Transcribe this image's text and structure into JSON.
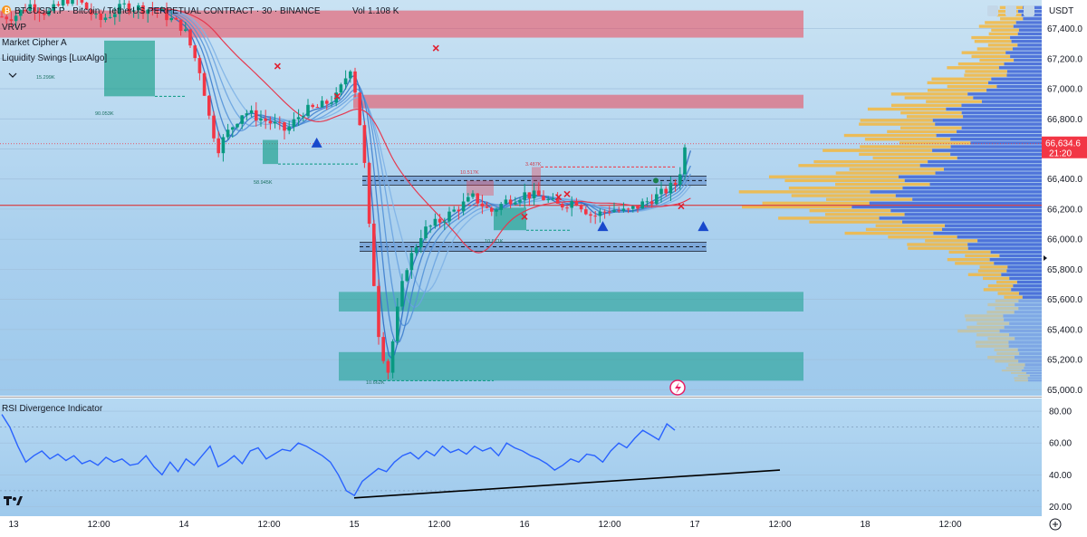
{
  "header": {
    "symbol_line": "BTCUSDT.P · Bitcoin / TetherUS PERPETUAL CONTRACT · 30 · BINANCE",
    "volume_label": "Vol",
    "volume_value": "1.108 K",
    "currency": "USDT"
  },
  "indicators": [
    "VRVP",
    "Market Cipher A",
    "Liquidity Swings [LuxAlgo]"
  ],
  "price_axis": {
    "ticks": [
      "67,400.0",
      "67,200.0",
      "67,000.0",
      "66,800.0",
      "66,600.0",
      "66,400.0",
      "66,200.0",
      "66,000.0",
      "65,800.0",
      "65,600.0",
      "65,400.0",
      "65,200.0",
      "65,000.0"
    ],
    "tick_values": [
      67400,
      67200,
      67000,
      66800,
      66600,
      66400,
      66200,
      66000,
      65800,
      65600,
      65400,
      65200,
      65000
    ],
    "last_price": "66,634.6",
    "countdown": "21:20",
    "last_price_value": 66634.6,
    "red_line_value": 66225,
    "ylim": [
      64960,
      67590
    ]
  },
  "time_axis": {
    "labels": [
      "13",
      "12:00",
      "14",
      "12:00",
      "15",
      "12:00",
      "16",
      "12:00",
      "17",
      "12:00",
      "18",
      "12:00"
    ]
  },
  "rsi_panel": {
    "title": "RSI Divergence Indicator",
    "ticks": [
      "80.00",
      "60.00",
      "40.00",
      "20.00"
    ],
    "tick_values": [
      80,
      60,
      40,
      20
    ],
    "ylim": [
      14,
      88
    ]
  },
  "annotations": {
    "liquidity_labels": [
      "15.299K",
      "90.053K",
      "58.945K",
      "10.517K",
      "3.487K",
      "10.671K",
      "10.662K"
    ]
  },
  "colors": {
    "supply_zone": "#f23645",
    "demand_zone": "#089981",
    "up_candle": "#089981",
    "down_candle": "#f23645",
    "rsi_line": "#2962ff",
    "ema_red": "#e53950",
    "signal_triangle": "#1848cc",
    "vp_yellow": "#f5b73d",
    "vp_blue": "#3d63d6"
  },
  "chart_data": {
    "type": "candlestick",
    "title": "BTCUSDT.P · Bitcoin / TetherUS PERPETUAL CONTRACT · 30 · BINANCE",
    "timeframe": "30",
    "ylim": [
      64960,
      67590
    ],
    "supply_zones": [
      {
        "from": 67340,
        "to": 67520
      },
      {
        "from": 66870,
        "to": 66960
      }
    ],
    "demand_zones": [
      {
        "from": 65520,
        "to": 65650
      },
      {
        "from": 65060,
        "to": 65250
      }
    ],
    "range_box": {
      "high": 66390,
      "low": 65950
    },
    "last_price": 66634.6,
    "price_path": [
      [
        13.0,
        67480
      ],
      [
        13.1,
        67560
      ],
      [
        13.2,
        67500
      ],
      [
        13.35,
        67620
      ],
      [
        13.5,
        67450
      ],
      [
        13.65,
        67550
      ],
      [
        13.85,
        67520
      ],
      [
        14.0,
        67400
      ],
      [
        14.1,
        67100
      ],
      [
        14.15,
        66800
      ],
      [
        14.2,
        66600
      ],
      [
        14.25,
        66700
      ],
      [
        14.35,
        66850
      ],
      [
        14.5,
        66780
      ],
      [
        14.6,
        66720
      ],
      [
        14.7,
        66850
      ],
      [
        14.8,
        66880
      ],
      [
        14.9,
        66950
      ],
      [
        14.98,
        67150
      ],
      [
        15.02,
        66900
      ],
      [
        15.06,
        66500
      ],
      [
        15.1,
        65900
      ],
      [
        15.15,
        65300
      ],
      [
        15.2,
        65120
      ],
      [
        15.25,
        65500
      ],
      [
        15.3,
        65800
      ],
      [
        15.4,
        66050
      ],
      [
        15.5,
        66120
      ],
      [
        15.6,
        66200
      ],
      [
        15.7,
        66280
      ],
      [
        15.8,
        66180
      ],
      [
        15.9,
        66260
      ],
      [
        16.0,
        66300
      ],
      [
        16.1,
        66280
      ],
      [
        16.2,
        66220
      ],
      [
        16.3,
        66260
      ],
      [
        16.4,
        66150
      ],
      [
        16.5,
        66200
      ],
      [
        16.6,
        66180
      ],
      [
        16.7,
        66240
      ],
      [
        16.8,
        66300
      ],
      [
        16.9,
        66380
      ],
      [
        16.95,
        66650
      ]
    ],
    "signals": {
      "buy_triangles": [
        [
          14.78,
          66640
        ],
        [
          16.46,
          66085
        ],
        [
          17.05,
          66085
        ]
      ],
      "sell_crosses": [
        [
          14.55,
          67150
        ],
        [
          14.9,
          66950
        ],
        [
          15.48,
          67270
        ],
        [
          16.0,
          66150
        ],
        [
          16.2,
          66280
        ],
        [
          16.25,
          66300
        ],
        [
          16.92,
          66220
        ]
      ]
    },
    "volume_profile": {
      "price_levels": [
        67550,
        67400,
        67250,
        67100,
        66950,
        66800,
        66650,
        66500,
        66350,
        66200,
        66050,
        65900,
        65750,
        65600,
        65450,
        65300,
        65150,
        65050
      ],
      "volume_relative": [
        0.16,
        0.22,
        0.26,
        0.34,
        0.52,
        0.62,
        0.66,
        0.82,
        0.98,
        1.0,
        0.64,
        0.34,
        0.22,
        0.16,
        0.3,
        0.22,
        0.14,
        0.08
      ],
      "buy_share": [
        0.55,
        0.55,
        0.55,
        0.55,
        0.5,
        0.4,
        0.5,
        0.5,
        0.45,
        0.35,
        0.45,
        0.45,
        0.45,
        0.5,
        0.5,
        0.5,
        0.5,
        0.5
      ]
    },
    "rsi": {
      "ylim": [
        14,
        88
      ],
      "values": [
        78,
        70,
        58,
        48,
        52,
        55,
        50,
        53,
        49,
        52,
        47,
        49,
        46,
        51,
        48,
        50,
        46,
        47,
        52,
        45,
        40,
        48,
        42,
        50,
        46,
        52,
        58,
        45,
        48,
        52,
        47,
        55,
        57,
        50,
        53,
        56,
        55,
        60,
        58,
        55,
        52,
        48,
        40,
        30,
        27,
        36,
        40,
        44,
        42,
        48,
        52,
        54,
        50,
        55,
        52,
        58,
        54,
        56,
        53,
        58,
        55,
        57,
        52,
        60,
        57,
        55,
        52,
        50,
        47,
        43,
        46,
        50,
        48,
        53,
        52,
        48,
        55,
        60,
        57,
        63,
        68,
        65,
        62,
        72,
        68
      ],
      "divergence_line": {
        "from": [
          15.0,
          25.5
        ],
        "to": [
          17.5,
          43
        ]
      }
    }
  }
}
